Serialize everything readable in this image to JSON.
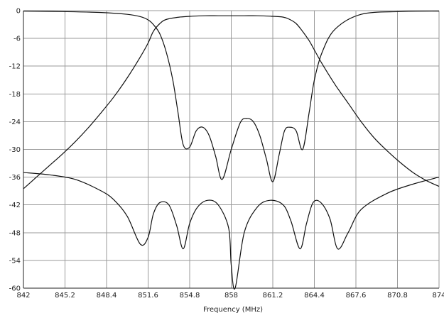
{
  "chart_data": {
    "type": "line",
    "title": "",
    "xlabel": "Frequency (MHz)",
    "ylabel": "",
    "xlim": [
      842,
      874
    ],
    "ylim": [
      -60,
      0
    ],
    "grid": true,
    "x_ticks": [
      "842",
      "845.2",
      "848.4",
      "851.6",
      "854.8",
      "858",
      "861.2",
      "864.4",
      "867.6",
      "870.8",
      "874"
    ],
    "y_ticks": [
      "0",
      "-6",
      "-12",
      "-18",
      "-24",
      "-30",
      "-36",
      "-42",
      "-48",
      "-54",
      "-60"
    ],
    "series": [
      {
        "x": [
          842,
          843,
          844,
          845,
          846,
          847,
          848,
          849,
          850,
          851,
          851.6,
          852,
          852.5,
          853,
          854,
          855,
          856,
          857,
          858,
          859,
          860,
          861,
          862,
          862.5,
          863,
          863.5,
          864,
          864.4,
          865,
          866,
          867,
          868,
          869,
          870,
          871,
          872,
          873,
          874
        ],
        "y": [
          -38.5,
          -36,
          -33.5,
          -31,
          -28.3,
          -25.3,
          -22,
          -18.5,
          -14.5,
          -10,
          -7,
          -4.5,
          -2.8,
          -1.9,
          -1.4,
          -1.2,
          -1.1,
          -1.1,
          -1.1,
          -1.1,
          -1.1,
          -1.2,
          -1.4,
          -1.9,
          -2.8,
          -4.5,
          -6.5,
          -8.5,
          -11.5,
          -16,
          -20,
          -24,
          -27.5,
          -30.3,
          -32.8,
          -35,
          -36.7,
          -38
        ]
      },
      {
        "x": [
          842,
          845,
          848,
          850,
          851,
          851.6,
          852,
          852.5,
          853,
          853.5,
          853.9,
          854.3,
          854.8,
          855.3,
          855.8,
          856.3,
          856.8,
          857.3,
          858,
          858.7,
          859.2,
          859.7,
          860.2,
          860.7,
          861.2,
          861.7,
          862.1,
          862.5,
          863,
          863.5,
          864,
          864.4,
          865,
          866,
          868,
          871,
          874
        ],
        "y": [
          -0.1,
          -0.2,
          -0.4,
          -0.8,
          -1.3,
          -2,
          -3,
          -5,
          -9,
          -15,
          -22,
          -29,
          -29.5,
          -26,
          -25.2,
          -27,
          -31.5,
          -36.5,
          -30,
          -24.2,
          -23.3,
          -24,
          -27,
          -32,
          -37,
          -31,
          -26,
          -25.2,
          -26,
          -30,
          -22,
          -15,
          -9,
          -4,
          -0.8,
          -0.2,
          -0.1
        ]
      },
      {
        "x": [
          842,
          844,
          846,
          848,
          849,
          850,
          851,
          851.6,
          852,
          852.5,
          853.2,
          853.8,
          854.3,
          854.8,
          855.4,
          856.2,
          857,
          857.8,
          858,
          858.3,
          859,
          860,
          861,
          862,
          862.6,
          863.3,
          863.8,
          864.3,
          864.9,
          865.6,
          866.2,
          867,
          868,
          870,
          872,
          874
        ],
        "y": [
          -35,
          -35.5,
          -36.5,
          -39,
          -41,
          -44.5,
          -50.5,
          -49,
          -44,
          -41.5,
          -42,
          -46.5,
          -51.5,
          -46,
          -42.5,
          -41,
          -42,
          -47,
          -55,
          -60,
          -48,
          -42.5,
          -41,
          -42,
          -45.5,
          -51.5,
          -46,
          -41.5,
          -41.5,
          -45,
          -51.5,
          -48,
          -43,
          -39.5,
          -37.5,
          -36
        ]
      }
    ]
  }
}
